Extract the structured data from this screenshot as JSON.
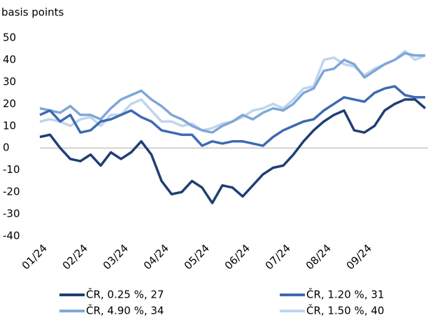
{
  "chart_data": {
    "type": "line",
    "ylabel": "basis points",
    "categories": [
      "01/24",
      null,
      null,
      null,
      "02/24",
      null,
      null,
      null,
      "03/24",
      null,
      null,
      null,
      "04/24",
      null,
      null,
      null,
      "05/24",
      null,
      null,
      null,
      "06/24",
      null,
      null,
      null,
      "07/24",
      null,
      null,
      null,
      "08/24",
      null,
      null,
      null,
      "09/24",
      null,
      null,
      null,
      null,
      null,
      null
    ],
    "ylim": [
      -40,
      50
    ],
    "yticks": [
      -40,
      -30,
      -20,
      -10,
      0,
      10,
      20,
      30,
      40,
      50
    ],
    "legend": "bottom",
    "series": [
      {
        "name": "ČR, 0.25 %, 27",
        "color": "#1f3f73",
        "values": [
          5,
          6,
          0,
          -5,
          -6,
          -3,
          -8,
          -2,
          -5,
          -2,
          3,
          -3,
          -15,
          -21,
          -20,
          -15,
          -18,
          -25,
          -17,
          -18,
          -22,
          -17,
          -12,
          -9,
          -8,
          -3,
          3,
          8,
          12,
          15,
          17,
          8,
          7,
          10,
          17,
          20,
          22,
          22,
          18
        ]
      },
      {
        "name": "ČR, 1.20 %, 31",
        "color": "#3d6ab3",
        "values": [
          15,
          17,
          12,
          15,
          7,
          8,
          12,
          13,
          15,
          17,
          14,
          12,
          8,
          7,
          6,
          6,
          1,
          3,
          2,
          3,
          3,
          2,
          1,
          5,
          8,
          10,
          12,
          13,
          17,
          20,
          23,
          22,
          21,
          25,
          27,
          28,
          24,
          23,
          23
        ]
      },
      {
        "name": "ČR, 4.90 %, 34",
        "color": "#7fa6d9",
        "values": [
          18,
          17,
          16,
          19,
          15,
          15,
          13,
          18,
          22,
          24,
          26,
          22,
          19,
          15,
          13,
          10,
          8,
          7,
          10,
          12,
          15,
          13,
          16,
          18,
          17,
          20,
          25,
          27,
          35,
          36,
          40,
          38,
          32,
          35,
          38,
          40,
          43,
          42,
          42
        ]
      },
      {
        "name": "ČR, 1.50 %, 40",
        "color": "#bfd5ee",
        "values": [
          12,
          13,
          12,
          10,
          13,
          14,
          10,
          15,
          15,
          20,
          22,
          17,
          12,
          12,
          10,
          11,
          8,
          9,
          11,
          12,
          14,
          17,
          18,
          20,
          18,
          22,
          27,
          28,
          40,
          41,
          38,
          37,
          33,
          36,
          38,
          40,
          44,
          40,
          42
        ]
      }
    ]
  }
}
